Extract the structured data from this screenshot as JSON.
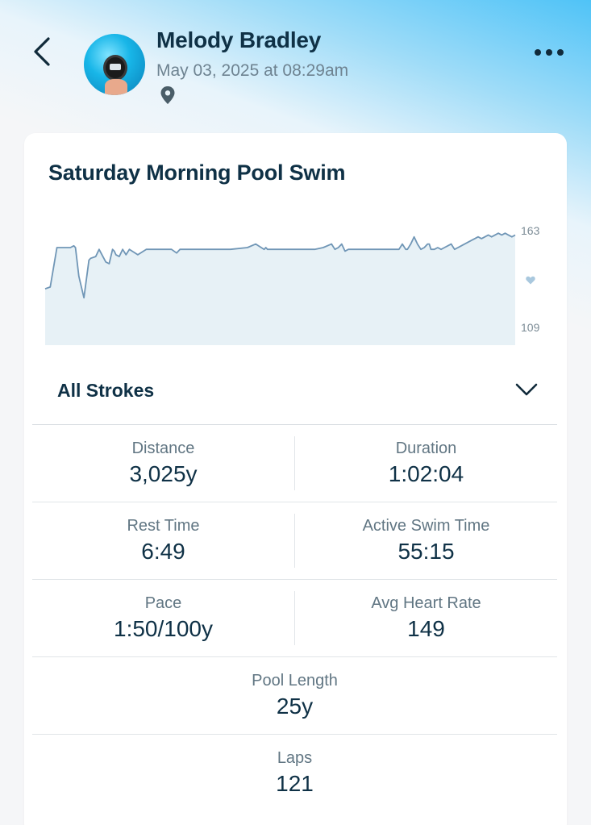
{
  "header": {
    "back_icon": "chevron-left-icon",
    "user_name": "Melody Bradley",
    "timestamp": "May 03, 2025 at 08:29am",
    "location_icon": "map-pin-icon",
    "more_icon": "ellipsis-icon"
  },
  "activity": {
    "title": "Saturday Morning Pool Swim"
  },
  "chart_data": {
    "type": "area",
    "y_axis_labels": [
      "163",
      "109"
    ],
    "ylim": [
      109,
      163
    ],
    "marker_icon": "heart-icon",
    "line_color": "#7096b6",
    "fill_color": "#e7f1f6",
    "x": [
      0,
      3,
      7,
      11,
      14,
      15,
      17,
      18,
      20,
      23,
      26,
      27,
      30,
      32,
      36,
      38,
      40,
      41,
      42,
      44,
      46,
      48,
      50,
      55,
      60,
      65,
      70,
      75,
      78,
      80,
      81,
      82,
      84,
      86,
      88,
      90,
      95,
      100,
      110,
      120,
      125,
      130,
      131,
      132,
      134,
      136,
      138,
      140,
      145,
      150,
      155,
      160,
      165,
      170,
      172,
      174,
      176,
      178,
      180,
      185,
      190,
      195,
      200,
      205,
      208,
      210,
      212,
      214,
      215,
      217,
      219,
      221,
      223,
      225,
      227,
      228,
      229,
      231,
      233,
      235,
      237,
      239,
      241,
      243,
      245,
      247,
      249,
      251,
      253,
      255,
      257,
      259,
      261,
      263,
      265,
      267,
      269,
      271,
      273,
      275,
      277,
      279
    ],
    "y": [
      131,
      132,
      154,
      154,
      154,
      154,
      155,
      154,
      138,
      126,
      147,
      148,
      149,
      153,
      146,
      145,
      153,
      152,
      150,
      149,
      153,
      150,
      153,
      150,
      153,
      153,
      153,
      153,
      151,
      153,
      153,
      153,
      153,
      153,
      153,
      153,
      153,
      153,
      153,
      154,
      156,
      153,
      154,
      153,
      153,
      153,
      153,
      153,
      153,
      153,
      153,
      153,
      154,
      156,
      153,
      154,
      156,
      152,
      153,
      153,
      153,
      153,
      153,
      153,
      153,
      153,
      156,
      153,
      153,
      156,
      160,
      156,
      153,
      154,
      156,
      156,
      153,
      153,
      154,
      153,
      154,
      155,
      156,
      153,
      154,
      155,
      156,
      157,
      158,
      159,
      160,
      159,
      160,
      161,
      160,
      161,
      162,
      161,
      162,
      161,
      160,
      161
    ]
  },
  "strokes": {
    "selected": "All Strokes",
    "chevron_icon": "chevron-down-icon"
  },
  "stats": {
    "distance": {
      "label": "Distance",
      "value": "3,025y"
    },
    "duration": {
      "label": "Duration",
      "value": "1:02:04"
    },
    "rest_time": {
      "label": "Rest Time",
      "value": "6:49"
    },
    "active_swim_time": {
      "label": "Active Swim Time",
      "value": "55:15"
    },
    "pace": {
      "label": "Pace",
      "value": "1:50/100y"
    },
    "avg_heart_rate": {
      "label": "Avg Heart Rate",
      "value": "149"
    },
    "pool_length": {
      "label": "Pool Length",
      "value": "25y"
    },
    "laps": {
      "label": "Laps",
      "value": "121"
    }
  }
}
